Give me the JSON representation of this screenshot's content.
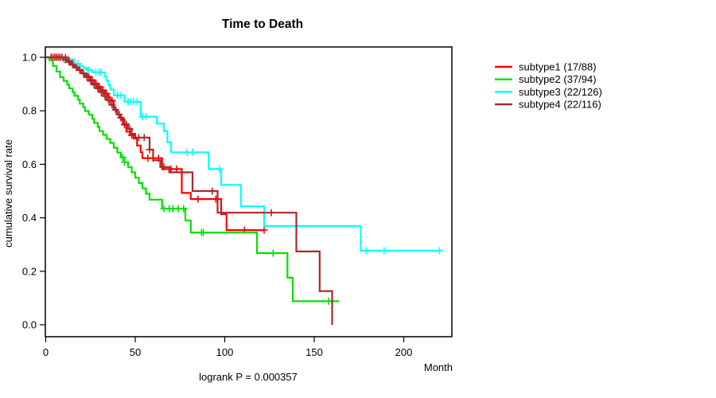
{
  "chart_data": {
    "type": "line",
    "subtype_style": "kaplan-meier-step",
    "title": "Time to Death",
    "xlabel": "Month",
    "ylabel": "cumulative survival rate",
    "annotation": "logrank P = 0.000357",
    "x_ticks": [
      0,
      50,
      100,
      150,
      200
    ],
    "y_ticks": [
      0.0,
      0.2,
      0.4,
      0.6,
      0.8,
      1.0
    ],
    "xlim": [
      0,
      227
    ],
    "ylim": [
      0.0,
      1.0
    ],
    "grid": false,
    "legend_position": "right-outside",
    "series": [
      {
        "name": "subtype1",
        "label": "subtype1 (17/88)",
        "events": "17/88",
        "color": "#ff0000",
        "end_time": 122,
        "steps": [
          [
            0,
            1.0
          ],
          [
            12,
            0.988
          ],
          [
            14,
            0.977
          ],
          [
            16,
            0.965
          ],
          [
            18,
            0.953
          ],
          [
            20,
            0.94
          ],
          [
            23,
            0.928
          ],
          [
            25,
            0.915
          ],
          [
            27,
            0.902
          ],
          [
            29,
            0.89
          ],
          [
            31,
            0.877
          ],
          [
            33,
            0.864
          ],
          [
            35,
            0.851
          ],
          [
            36,
            0.838
          ],
          [
            38,
            0.812
          ],
          [
            39,
            0.8
          ],
          [
            40,
            0.787
          ],
          [
            41,
            0.774
          ],
          [
            43,
            0.748
          ],
          [
            45,
            0.722
          ],
          [
            47,
            0.709
          ],
          [
            49,
            0.696
          ],
          [
            51,
            0.67
          ],
          [
            53,
            0.645
          ],
          [
            54,
            0.623
          ],
          [
            65,
            0.582
          ],
          [
            76,
            0.493
          ],
          [
            81,
            0.47
          ],
          [
            98,
            0.413
          ],
          [
            101,
            0.354
          ]
        ],
        "censors": [
          [
            3,
            1.0
          ],
          [
            5,
            1.0
          ],
          [
            7,
            1.0
          ],
          [
            9,
            1.0
          ],
          [
            11,
            1.0
          ],
          [
            13,
            0.988
          ],
          [
            15,
            0.977
          ],
          [
            17,
            0.965
          ],
          [
            19,
            0.953
          ],
          [
            21,
            0.94
          ],
          [
            24,
            0.928
          ],
          [
            26,
            0.915
          ],
          [
            28,
            0.902
          ],
          [
            30,
            0.89
          ],
          [
            32,
            0.877
          ],
          [
            34,
            0.864
          ],
          [
            37,
            0.838
          ],
          [
            42,
            0.774
          ],
          [
            44,
            0.748
          ],
          [
            48,
            0.709
          ],
          [
            57,
            0.623
          ],
          [
            60,
            0.623
          ],
          [
            63,
            0.623
          ],
          [
            70,
            0.582
          ],
          [
            73,
            0.582
          ],
          [
            85,
            0.47
          ],
          [
            95,
            0.47
          ],
          [
            111,
            0.354
          ],
          [
            122,
            0.354
          ]
        ]
      },
      {
        "name": "subtype2",
        "label": "subtype2 (37/94)",
        "events": "37/94",
        "color": "#00e100",
        "end_time": 164,
        "steps": [
          [
            0,
            1.0
          ],
          [
            2,
            0.989
          ],
          [
            4,
            0.968
          ],
          [
            6,
            0.947
          ],
          [
            8,
            0.926
          ],
          [
            10,
            0.912
          ],
          [
            12,
            0.898
          ],
          [
            13,
            0.884
          ],
          [
            15,
            0.87
          ],
          [
            16,
            0.856
          ],
          [
            18,
            0.842
          ],
          [
            19,
            0.827
          ],
          [
            21,
            0.813
          ],
          [
            22,
            0.799
          ],
          [
            24,
            0.785
          ],
          [
            26,
            0.77
          ],
          [
            27,
            0.755
          ],
          [
            29,
            0.74
          ],
          [
            30,
            0.724
          ],
          [
            32,
            0.71
          ],
          [
            34,
            0.695
          ],
          [
            36,
            0.68
          ],
          [
            38,
            0.662
          ],
          [
            40,
            0.644
          ],
          [
            42,
            0.626
          ],
          [
            44,
            0.608
          ],
          [
            46,
            0.59
          ],
          [
            48,
            0.57
          ],
          [
            50,
            0.55
          ],
          [
            52,
            0.53
          ],
          [
            54,
            0.51
          ],
          [
            56,
            0.49
          ],
          [
            58,
            0.468
          ],
          [
            65,
            0.434
          ],
          [
            78,
            0.39
          ],
          [
            81,
            0.345
          ],
          [
            118,
            0.268
          ],
          [
            135,
            0.176
          ],
          [
            138,
            0.088
          ]
        ],
        "censors": [
          [
            43,
            0.626
          ],
          [
            44,
            0.608
          ],
          [
            66,
            0.434
          ],
          [
            69,
            0.434
          ],
          [
            71,
            0.434
          ],
          [
            74,
            0.434
          ],
          [
            77,
            0.434
          ],
          [
            87,
            0.345
          ],
          [
            88,
            0.345
          ],
          [
            127,
            0.268
          ],
          [
            158,
            0.088
          ]
        ]
      },
      {
        "name": "subtype3",
        "label": "subtype3 (22/126)",
        "events": "22/126",
        "color": "#00ffff",
        "end_time": 220,
        "steps": [
          [
            0,
            1.0
          ],
          [
            8,
            0.992
          ],
          [
            16,
            0.976
          ],
          [
            19,
            0.968
          ],
          [
            21,
            0.96
          ],
          [
            23,
            0.952
          ],
          [
            26,
            0.944
          ],
          [
            33,
            0.928
          ],
          [
            34,
            0.912
          ],
          [
            35,
            0.896
          ],
          [
            36,
            0.88
          ],
          [
            38,
            0.858
          ],
          [
            44,
            0.834
          ],
          [
            53,
            0.778
          ],
          [
            62,
            0.752
          ],
          [
            66,
            0.724
          ],
          [
            68,
            0.682
          ],
          [
            70,
            0.645
          ],
          [
            91,
            0.582
          ],
          [
            98,
            0.523
          ],
          [
            109,
            0.443
          ],
          [
            122,
            0.369
          ],
          [
            176,
            0.277
          ]
        ],
        "censors": [
          [
            10,
            0.992
          ],
          [
            18,
            0.976
          ],
          [
            24,
            0.952
          ],
          [
            28,
            0.944
          ],
          [
            30,
            0.944
          ],
          [
            31,
            0.944
          ],
          [
            40,
            0.858
          ],
          [
            42,
            0.858
          ],
          [
            46,
            0.834
          ],
          [
            47,
            0.834
          ],
          [
            49,
            0.834
          ],
          [
            51,
            0.834
          ],
          [
            54,
            0.778
          ],
          [
            56,
            0.778
          ],
          [
            79,
            0.645
          ],
          [
            82,
            0.645
          ],
          [
            97,
            0.582
          ],
          [
            140,
            0.369
          ],
          [
            179,
            0.277
          ],
          [
            189,
            0.277
          ],
          [
            220,
            0.277
          ]
        ]
      },
      {
        "name": "subtype4",
        "label": "subtype4 (22/116)",
        "events": "22/116",
        "color": "#aa2828",
        "end_time": 160,
        "steps": [
          [
            0,
            1.0
          ],
          [
            10,
            0.991
          ],
          [
            12,
            0.982
          ],
          [
            14,
            0.972
          ],
          [
            16,
            0.962
          ],
          [
            18,
            0.952
          ],
          [
            20,
            0.94
          ],
          [
            22,
            0.926
          ],
          [
            24,
            0.912
          ],
          [
            26,
            0.898
          ],
          [
            28,
            0.884
          ],
          [
            30,
            0.87
          ],
          [
            32,
            0.855
          ],
          [
            34,
            0.84
          ],
          [
            36,
            0.822
          ],
          [
            38,
            0.804
          ],
          [
            40,
            0.786
          ],
          [
            42,
            0.768
          ],
          [
            44,
            0.75
          ],
          [
            46,
            0.732
          ],
          [
            48,
            0.714
          ],
          [
            50,
            0.7
          ],
          [
            58,
            0.655
          ],
          [
            60,
            0.615
          ],
          [
            64,
            0.59
          ],
          [
            69,
            0.57
          ],
          [
            82,
            0.5
          ],
          [
            96,
            0.419
          ],
          [
            140,
            0.274
          ],
          [
            153,
            0.126
          ],
          [
            160,
            0.0
          ]
        ],
        "censors": [
          [
            4,
            1.0
          ],
          [
            6,
            1.0
          ],
          [
            8,
            1.0
          ],
          [
            11,
            0.991
          ],
          [
            13,
            0.982
          ],
          [
            15,
            0.972
          ],
          [
            17,
            0.962
          ],
          [
            19,
            0.952
          ],
          [
            21,
            0.94
          ],
          [
            23,
            0.926
          ],
          [
            25,
            0.912
          ],
          [
            27,
            0.898
          ],
          [
            29,
            0.884
          ],
          [
            31,
            0.87
          ],
          [
            33,
            0.855
          ],
          [
            35,
            0.84
          ],
          [
            37,
            0.822
          ],
          [
            39,
            0.804
          ],
          [
            41,
            0.786
          ],
          [
            45,
            0.75
          ],
          [
            47,
            0.732
          ],
          [
            52,
            0.7
          ],
          [
            55,
            0.7
          ],
          [
            58,
            0.655
          ],
          [
            66,
            0.59
          ],
          [
            93,
            0.5
          ],
          [
            126,
            0.419
          ]
        ]
      }
    ]
  }
}
